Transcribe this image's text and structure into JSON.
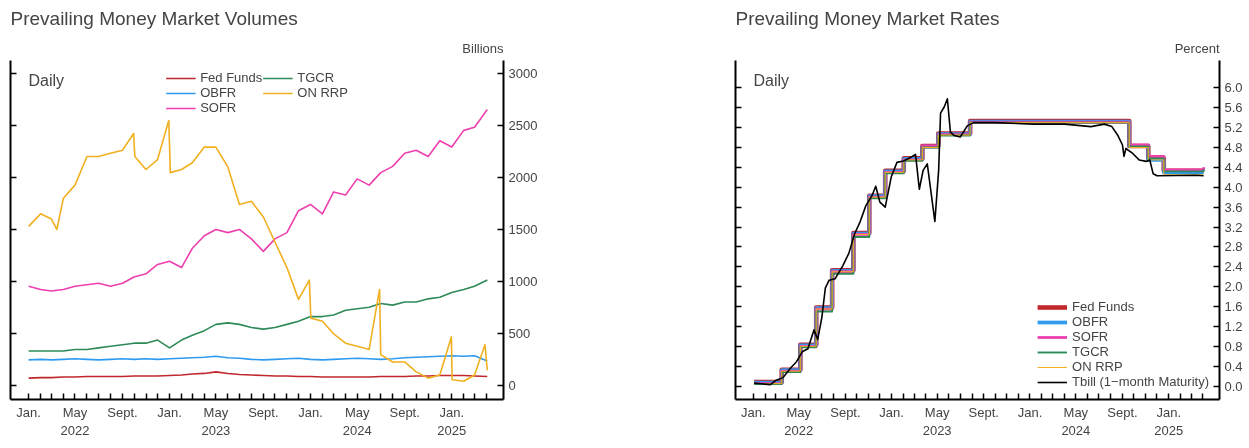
{
  "chart_data": [
    {
      "type": "line",
      "title": "Prevailing Money Market Volumes",
      "ylabel": "Billions",
      "annotations": [
        "Daily"
      ],
      "legend": "top",
      "grid": false,
      "xlim": [
        "2021-11-15",
        "2025-05-15"
      ],
      "xticks": [
        {
          "value": "2022-01-01",
          "label": "Jan."
        },
        {
          "value": "2022-02-01",
          "label": null
        },
        {
          "value": "2022-03-01",
          "label": null
        },
        {
          "value": "2022-04-01",
          "label": null
        },
        {
          "value": "2022-05-01",
          "label": "May\n2022"
        },
        {
          "value": "2022-06-01",
          "label": null
        },
        {
          "value": "2022-07-01",
          "label": null
        },
        {
          "value": "2022-08-01",
          "label": null
        },
        {
          "value": "2022-09-01",
          "label": "Sept."
        },
        {
          "value": "2022-10-01",
          "label": null
        },
        {
          "value": "2022-11-01",
          "label": null
        },
        {
          "value": "2022-12-01",
          "label": null
        },
        {
          "value": "2023-01-01",
          "label": "Jan."
        },
        {
          "value": "2023-02-01",
          "label": null
        },
        {
          "value": "2023-03-01",
          "label": null
        },
        {
          "value": "2023-04-01",
          "label": null
        },
        {
          "value": "2023-05-01",
          "label": "May\n2023"
        },
        {
          "value": "2023-06-01",
          "label": null
        },
        {
          "value": "2023-07-01",
          "label": null
        },
        {
          "value": "2023-08-01",
          "label": null
        },
        {
          "value": "2023-09-01",
          "label": "Sept."
        },
        {
          "value": "2023-10-01",
          "label": null
        },
        {
          "value": "2023-11-01",
          "label": null
        },
        {
          "value": "2023-12-01",
          "label": null
        },
        {
          "value": "2024-01-01",
          "label": "Jan."
        },
        {
          "value": "2024-02-01",
          "label": null
        },
        {
          "value": "2024-03-01",
          "label": null
        },
        {
          "value": "2024-04-01",
          "label": null
        },
        {
          "value": "2024-05-01",
          "label": "May\n2024"
        },
        {
          "value": "2024-06-01",
          "label": null
        },
        {
          "value": "2024-07-01",
          "label": null
        },
        {
          "value": "2024-08-01",
          "label": null
        },
        {
          "value": "2024-09-01",
          "label": "Sept."
        },
        {
          "value": "2024-10-01",
          "label": null
        },
        {
          "value": "2024-11-01",
          "label": null
        },
        {
          "value": "2024-12-01",
          "label": null
        },
        {
          "value": "2025-01-01",
          "label": "Jan.\n2025"
        },
        {
          "value": "2025-02-01",
          "label": null
        },
        {
          "value": "2025-03-01",
          "label": null
        },
        {
          "value": "2025-04-01",
          "label": null
        }
      ],
      "ylim": [
        -130,
        3120
      ],
      "yticks": [
        0,
        500,
        1000,
        1500,
        2000,
        2500,
        3000
      ],
      "x": [
        "2022-01-01",
        "2022-02-01",
        "2022-03-01",
        "2022-04-01",
        "2022-05-01",
        "2022-06-01",
        "2022-07-01",
        "2022-08-01",
        "2022-09-01",
        "2022-10-01",
        "2022-11-01",
        "2022-12-01",
        "2023-01-01",
        "2023-02-01",
        "2023-03-01",
        "2023-04-01",
        "2023-05-01",
        "2023-06-01",
        "2023-07-01",
        "2023-08-01",
        "2023-09-01",
        "2023-10-01",
        "2023-11-01",
        "2023-12-01",
        "2024-01-01",
        "2024-02-01",
        "2024-03-01",
        "2024-04-01",
        "2024-05-01",
        "2024-06-01",
        "2024-07-01",
        "2024-08-01",
        "2024-09-01",
        "2024-10-01",
        "2024-11-01",
        "2024-12-01",
        "2025-01-01",
        "2025-02-01",
        "2025-03-01",
        "2025-04-03"
      ],
      "series": [
        {
          "name": "Fed Funds",
          "color": "#c0282d",
          "values": [
            75,
            80,
            80,
            85,
            85,
            90,
            90,
            90,
            90,
            95,
            95,
            95,
            100,
            105,
            115,
            120,
            135,
            120,
            110,
            105,
            100,
            95,
            95,
            90,
            90,
            85,
            85,
            85,
            85,
            85,
            90,
            90,
            90,
            95,
            95,
            100,
            100,
            100,
            95,
            90
          ]
        },
        {
          "name": "OBFR",
          "color": "#2e9bf0",
          "values": [
            250,
            255,
            250,
            255,
            260,
            255,
            250,
            255,
            260,
            255,
            260,
            255,
            260,
            265,
            270,
            275,
            285,
            270,
            265,
            255,
            250,
            255,
            260,
            265,
            255,
            250,
            255,
            260,
            265,
            260,
            255,
            260,
            270,
            275,
            280,
            285,
            290,
            285,
            290,
            240
          ]
        },
        {
          "name": "SOFR",
          "color": "#ee3fae",
          "values": [
            955,
            925,
            910,
            925,
            955,
            970,
            985,
            955,
            985,
            1045,
            1075,
            1165,
            1195,
            1135,
            1320,
            1440,
            1500,
            1470,
            1500,
            1410,
            1290,
            1410,
            1470,
            1680,
            1740,
            1650,
            1860,
            1830,
            1985,
            1925,
            2045,
            2105,
            2230,
            2260,
            2200,
            2350,
            2290,
            2450,
            2480,
            2650
          ]
        },
        {
          "name": "TGCR",
          "color": "#2e8b57",
          "values": [
            335,
            335,
            335,
            335,
            350,
            350,
            365,
            380,
            395,
            410,
            410,
            440,
            365,
            440,
            485,
            530,
            590,
            605,
            590,
            560,
            545,
            560,
            590,
            620,
            665,
            665,
            680,
            725,
            740,
            755,
            790,
            775,
            805,
            805,
            835,
            850,
            895,
            925,
            955,
            1015
          ]
        },
        {
          "name": "ON RRP",
          "color": "#f0b020",
          "x": [
            "2022-01-01",
            "2022-02-01",
            "2022-03-01",
            "2022-03-15",
            "2022-04-01",
            "2022-05-01",
            "2022-06-01",
            "2022-07-01",
            "2022-08-01",
            "2022-09-01",
            "2022-09-30",
            "2022-10-03",
            "2022-11-01",
            "2022-12-01",
            "2022-12-30",
            "2023-01-03",
            "2023-02-01",
            "2023-03-01",
            "2023-04-01",
            "2023-05-01",
            "2023-06-01",
            "2023-07-01",
            "2023-08-01",
            "2023-09-01",
            "2023-10-01",
            "2023-11-01",
            "2023-12-01",
            "2023-12-29",
            "2024-01-02",
            "2024-02-01",
            "2024-03-01",
            "2024-04-01",
            "2024-05-01",
            "2024-06-01",
            "2024-06-28",
            "2024-07-01",
            "2024-08-01",
            "2024-09-01",
            "2024-10-01",
            "2024-11-01",
            "2024-12-01",
            "2024-12-31",
            "2025-01-02",
            "2025-02-01",
            "2025-03-01",
            "2025-03-28",
            "2025-04-03"
          ],
          "values": [
            1530,
            1650,
            1600,
            1500,
            1800,
            1925,
            2200,
            2200,
            2230,
            2260,
            2420,
            2200,
            2075,
            2170,
            2545,
            2045,
            2075,
            2140,
            2290,
            2290,
            2100,
            1740,
            1770,
            1620,
            1380,
            1135,
            830,
            1015,
            650,
            620,
            500,
            410,
            380,
            350,
            925,
            300,
            230,
            230,
            135,
            75,
            105,
            470,
            60,
            45,
            105,
            395,
            150
          ]
        }
      ]
    },
    {
      "type": "line",
      "title": "Prevailing Money Market Rates",
      "ylabel": "Percent",
      "annotations": [
        "Daily"
      ],
      "legend": "bottom right",
      "grid": false,
      "xlim": [
        "2021-11-15",
        "2025-05-15"
      ],
      "xticks": [
        {
          "value": "2022-01-01",
          "label": "Jan."
        },
        {
          "value": "2022-02-01",
          "label": null
        },
        {
          "value": "2022-03-01",
          "label": null
        },
        {
          "value": "2022-04-01",
          "label": null
        },
        {
          "value": "2022-05-01",
          "label": "May\n2022"
        },
        {
          "value": "2022-06-01",
          "label": null
        },
        {
          "value": "2022-07-01",
          "label": null
        },
        {
          "value": "2022-08-01",
          "label": null
        },
        {
          "value": "2022-09-01",
          "label": "Sept."
        },
        {
          "value": "2022-10-01",
          "label": null
        },
        {
          "value": "2022-11-01",
          "label": null
        },
        {
          "value": "2022-12-01",
          "label": null
        },
        {
          "value": "2023-01-01",
          "label": "Jan."
        },
        {
          "value": "2023-02-01",
          "label": null
        },
        {
          "value": "2023-03-01",
          "label": null
        },
        {
          "value": "2023-04-01",
          "label": null
        },
        {
          "value": "2023-05-01",
          "label": "May\n2023"
        },
        {
          "value": "2023-06-01",
          "label": null
        },
        {
          "value": "2023-07-01",
          "label": null
        },
        {
          "value": "2023-08-01",
          "label": null
        },
        {
          "value": "2023-09-01",
          "label": "Sept."
        },
        {
          "value": "2023-10-01",
          "label": null
        },
        {
          "value": "2023-11-01",
          "label": null
        },
        {
          "value": "2023-12-01",
          "label": null
        },
        {
          "value": "2024-01-01",
          "label": "Jan."
        },
        {
          "value": "2024-02-01",
          "label": null
        },
        {
          "value": "2024-03-01",
          "label": null
        },
        {
          "value": "2024-04-01",
          "label": null
        },
        {
          "value": "2024-05-01",
          "label": "May\n2024"
        },
        {
          "value": "2024-06-01",
          "label": null
        },
        {
          "value": "2024-07-01",
          "label": null
        },
        {
          "value": "2024-08-01",
          "label": null
        },
        {
          "value": "2024-09-01",
          "label": "Sept."
        },
        {
          "value": "2024-10-01",
          "label": null
        },
        {
          "value": "2024-11-01",
          "label": null
        },
        {
          "value": "2024-12-01",
          "label": null
        },
        {
          "value": "2025-01-01",
          "label": "Jan.\n2025"
        },
        {
          "value": "2025-02-01",
          "label": null
        },
        {
          "value": "2025-03-01",
          "label": null
        },
        {
          "value": "2025-04-01",
          "label": null
        }
      ],
      "ylim": [
        -0.27,
        6.55
      ],
      "yticks": [
        {
          "value": 0,
          "label": "0.0"
        },
        {
          "value": 0.4,
          "label": "0.4"
        },
        {
          "value": 0.8,
          "label": "0.8"
        },
        {
          "value": 1.2,
          "label": "1.2"
        },
        {
          "value": 1.6,
          "label": "1.6"
        },
        {
          "value": 2,
          "label": "2.0"
        },
        {
          "value": 2.4,
          "label": "2.4"
        },
        {
          "value": 2.8,
          "label": "2.8"
        },
        {
          "value": 3.2,
          "label": "3.2"
        },
        {
          "value": 3.6,
          "label": "3.6"
        },
        {
          "value": 4,
          "label": "4.0"
        },
        {
          "value": 4.4,
          "label": "4.4"
        },
        {
          "value": 4.8,
          "label": "4.8"
        },
        {
          "value": 5.2,
          "label": "5.2"
        },
        {
          "value": 5.6,
          "label": "5.6"
        },
        {
          "value": 6,
          "label": "6.0"
        }
      ],
      "x": [
        "2022-01-03",
        "2022-03-17",
        "2022-05-05",
        "2022-06-16",
        "2022-07-28",
        "2022-09-22",
        "2022-11-03",
        "2022-12-15",
        "2023-02-02",
        "2023-03-23",
        "2023-05-04",
        "2023-07-27",
        "2024-09-19",
        "2024-11-08",
        "2024-12-19",
        "2025-04-03"
      ],
      "series": [
        {
          "name": "Fed Funds",
          "color": "#c0282d",
          "type": "step",
          "values": [
            0.08,
            0.33,
            0.83,
            1.58,
            2.33,
            3.08,
            3.83,
            4.33,
            4.58,
            4.83,
            5.08,
            5.33,
            4.83,
            4.58,
            4.33,
            4.33
          ]
        },
        {
          "name": "OBFR",
          "color": "#2e9bf0",
          "type": "step",
          "values": [
            0.07,
            0.32,
            0.82,
            1.57,
            2.32,
            3.07,
            3.82,
            4.32,
            4.57,
            4.82,
            5.07,
            5.32,
            4.83,
            4.55,
            4.3,
            4.3
          ]
        },
        {
          "name": "SOFR",
          "color": "#ee3fae",
          "type": "step",
          "values": [
            0.05,
            0.3,
            0.8,
            1.55,
            2.3,
            3.05,
            3.8,
            4.3,
            4.55,
            4.83,
            5.06,
            5.31,
            4.85,
            4.62,
            4.35,
            4.4
          ]
        },
        {
          "name": "TGCR",
          "color": "#2e8b57",
          "type": "step",
          "values": [
            0.04,
            0.28,
            0.78,
            1.5,
            2.26,
            3.0,
            3.78,
            4.28,
            4.53,
            4.8,
            5.04,
            5.3,
            4.82,
            4.58,
            4.32,
            4.36
          ]
        },
        {
          "name": "ON RRP",
          "color": "#f0b020",
          "type": "step",
          "values": [
            0.05,
            0.3,
            0.8,
            1.55,
            2.3,
            3.05,
            3.8,
            4.3,
            4.55,
            4.8,
            5.05,
            5.3,
            4.8,
            4.55,
            4.25,
            4.25
          ]
        },
        {
          "name": "Tbill (1−month Maturity)",
          "color": "#000000",
          "type": "line",
          "x": [
            "2022-01-03",
            "2022-02-15",
            "2022-03-01",
            "2022-03-20",
            "2022-04-10",
            "2022-04-25",
            "2022-05-10",
            "2022-05-25",
            "2022-06-10",
            "2022-06-20",
            "2022-07-01",
            "2022-07-10",
            "2022-07-20",
            "2022-08-05",
            "2022-08-25",
            "2022-09-10",
            "2022-09-25",
            "2022-10-10",
            "2022-10-25",
            "2022-11-10",
            "2022-11-20",
            "2022-12-01",
            "2022-12-15",
            "2022-12-31",
            "2023-01-15",
            "2023-02-01",
            "2023-02-20",
            "2023-03-05",
            "2023-03-15",
            "2023-03-25",
            "2023-04-05",
            "2023-04-15",
            "2023-04-25",
            "2023-05-05",
            "2023-05-10",
            "2023-05-20",
            "2023-05-28",
            "2023-06-05",
            "2023-06-15",
            "2023-07-01",
            "2023-07-20",
            "2023-08-05",
            "2023-10-01",
            "2024-01-10",
            "2024-04-01",
            "2024-06-10",
            "2024-07-15",
            "2024-08-04",
            "2024-08-20",
            "2024-09-01",
            "2024-09-05",
            "2024-09-10",
            "2024-09-28",
            "2024-10-15",
            "2024-11-03",
            "2024-11-12",
            "2024-11-21",
            "2024-12-01",
            "2025-03-15",
            "2025-04-03"
          ],
          "values": [
            0.06,
            0.03,
            0.11,
            0.17,
            0.37,
            0.49,
            0.69,
            0.75,
            1.13,
            0.94,
            1.39,
            1.97,
            2.13,
            2.16,
            2.42,
            2.67,
            3.06,
            3.31,
            3.63,
            3.83,
            4.02,
            3.7,
            3.6,
            4.21,
            4.5,
            4.53,
            4.6,
            4.66,
            3.96,
            4.34,
            4.47,
            3.89,
            3.31,
            4.34,
            5.49,
            5.62,
            5.78,
            5.11,
            5.04,
            5.01,
            5.24,
            5.3,
            5.3,
            5.27,
            5.27,
            5.22,
            5.27,
            5.22,
            5.04,
            4.85,
            4.62,
            4.78,
            4.68,
            4.55,
            4.52,
            4.55,
            4.27,
            4.23,
            4.24,
            4.23
          ]
        }
      ]
    }
  ]
}
